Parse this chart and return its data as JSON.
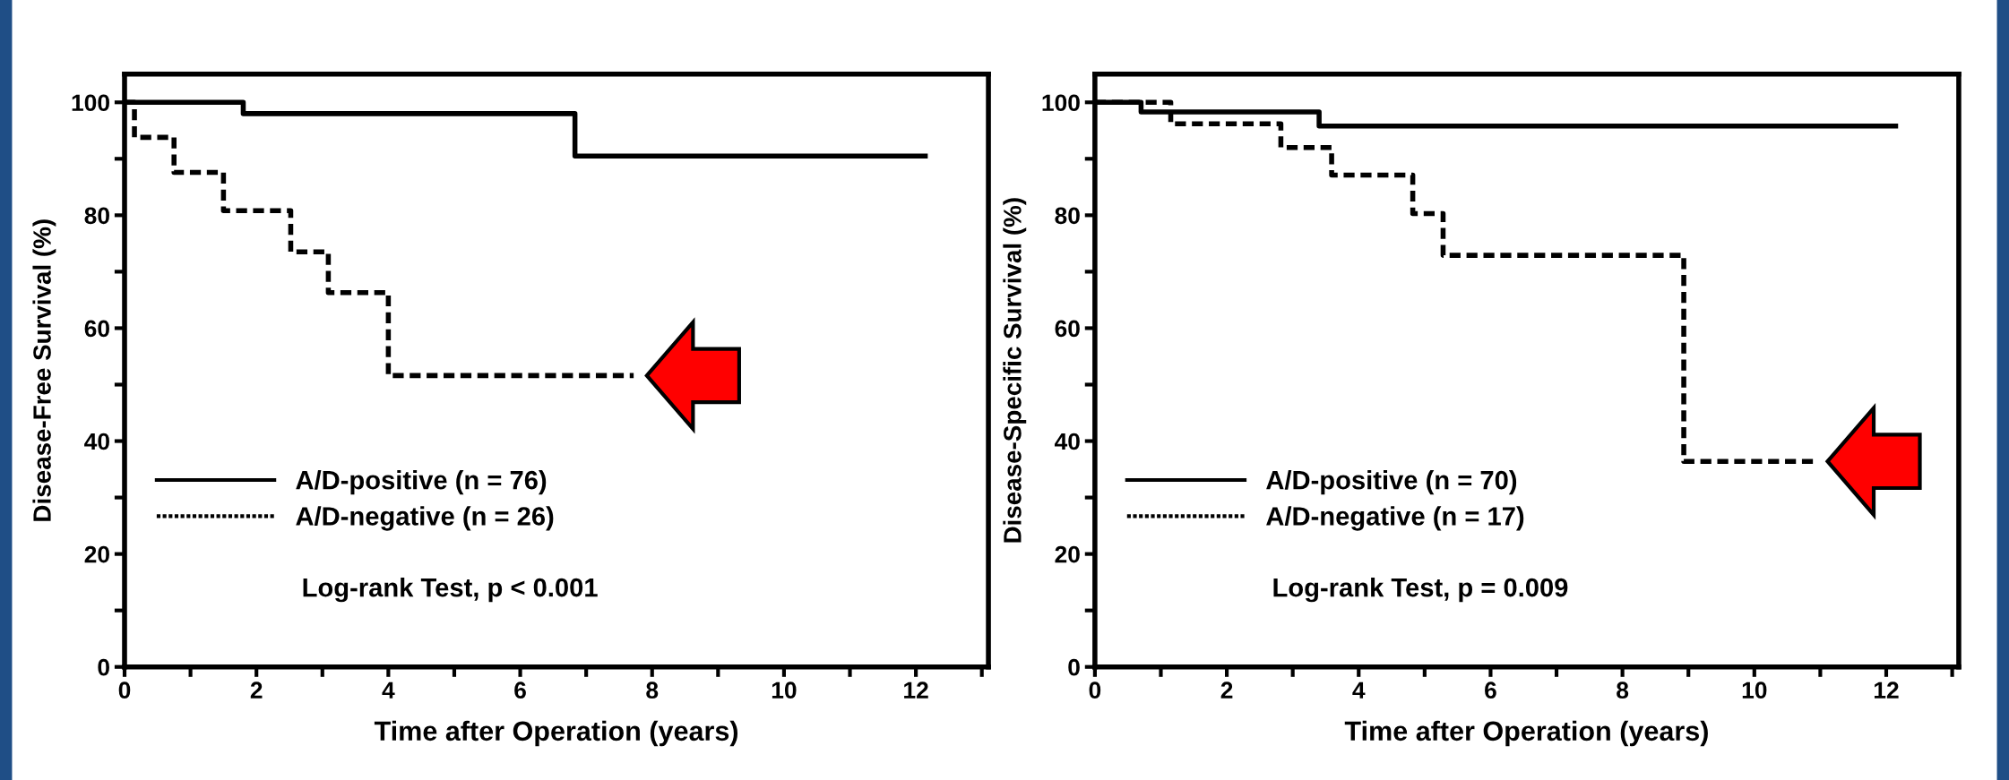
{
  "chart_data": [
    {
      "type": "step",
      "xlabel": "Time after Operation (years)",
      "ylabel": "Disease-Free Survival (%)",
      "xlim": [
        0,
        13.1
      ],
      "ylim": [
        0,
        105
      ],
      "xticks": [
        0,
        {
          "value": 1,
          "label": null
        },
        2,
        {
          "value": 3,
          "label": null
        },
        4,
        {
          "value": 5,
          "label": null
        },
        6,
        {
          "value": 7,
          "label": null
        },
        8,
        {
          "value": 9,
          "label": null
        },
        10,
        {
          "value": 11,
          "label": null
        },
        12,
        {
          "value": 13,
          "label": null
        }
      ],
      "yticks": [
        0,
        {
          "value": 10,
          "label": null
        },
        20,
        {
          "value": 30,
          "label": null
        },
        40,
        {
          "value": 50,
          "label": null
        },
        60,
        {
          "value": 70,
          "label": null
        },
        80,
        {
          "value": 90,
          "label": null
        },
        100
      ],
      "grid": false,
      "legend": "bottom left",
      "series": [
        {
          "name": "A/D-positive (n = 76)",
          "color": "#000000",
          "line_style": "solid",
          "x": [
            0,
            1.8,
            6.83,
            12.18
          ],
          "values": [
            100,
            98,
            90.5,
            90.5
          ]
        },
        {
          "name": "A/D-negative (n = 26)",
          "color": "#000000",
          "line_style": "dashed",
          "x": [
            0,
            0.15,
            0.75,
            1.5,
            2.52,
            3.09,
            4.0,
            7.72
          ],
          "values": [
            100,
            93.8,
            87.6,
            80.8,
            73.5,
            66.3,
            51.6,
            51.6
          ]
        }
      ],
      "annotations": [
        "Log-rank Test, p < 0.001"
      ]
    },
    {
      "type": "step",
      "xlabel": "Time after Operation (years)",
      "ylabel": "Disease-Specific Survival (%)",
      "xlim": [
        0,
        13.1
      ],
      "ylim": [
        0,
        105
      ],
      "xticks": [
        0,
        {
          "value": 1,
          "label": null
        },
        2,
        {
          "value": 3,
          "label": null
        },
        4,
        {
          "value": 5,
          "label": null
        },
        6,
        {
          "value": 7,
          "label": null
        },
        8,
        {
          "value": 9,
          "label": null
        },
        10,
        {
          "value": 11,
          "label": null
        },
        12,
        {
          "value": 13,
          "label": null
        }
      ],
      "yticks": [
        0,
        {
          "value": 10,
          "label": null
        },
        20,
        {
          "value": 30,
          "label": null
        },
        40,
        {
          "value": 50,
          "label": null
        },
        60,
        {
          "value": 70,
          "label": null
        },
        80,
        {
          "value": 90,
          "label": null
        },
        100
      ],
      "grid": false,
      "legend": "bottom left",
      "series": [
        {
          "name": "A/D-positive (n = 70)",
          "color": "#000000",
          "line_style": "solid",
          "x": [
            0,
            0.7,
            3.4,
            12.18
          ],
          "values": [
            100,
            98.3,
            95.8,
            95.8
          ]
        },
        {
          "name": "A/D-negative (n = 17)",
          "color": "#000000",
          "line_style": "dashed",
          "x": [
            0,
            1.15,
            2.82,
            3.59,
            4.82,
            5.28,
            8.93,
            10.91
          ],
          "values": [
            100,
            96.2,
            92.0,
            87.1,
            80.3,
            72.9,
            36.4,
            36.4
          ]
        }
      ],
      "annotations": [
        "Log-rank Test, p = 0.009"
      ]
    }
  ]
}
